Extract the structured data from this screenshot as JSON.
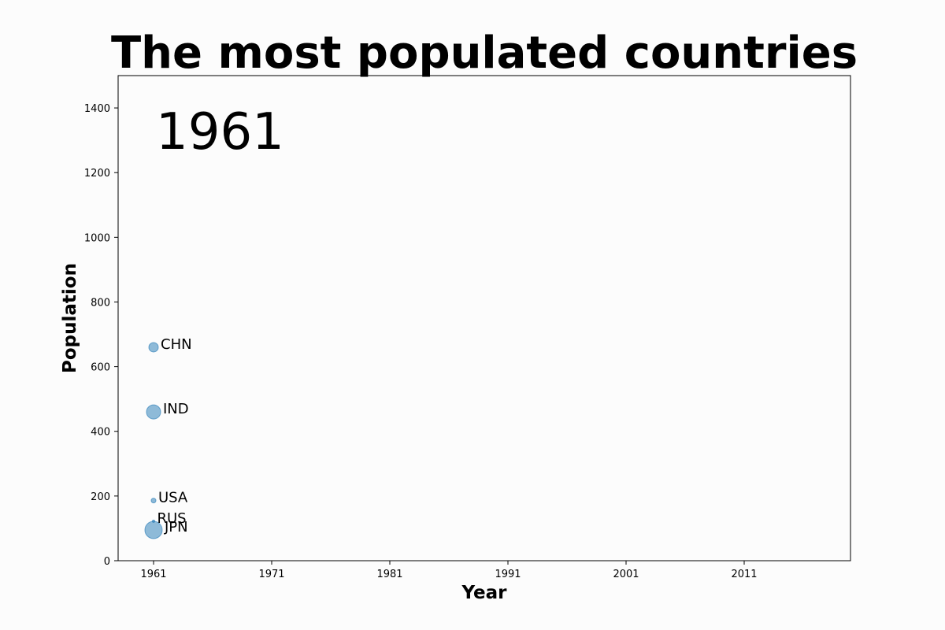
{
  "chart_data": {
    "type": "scatter",
    "title": "The most populated countries",
    "year_label": "1961",
    "xlabel": "Year",
    "ylabel": "Population",
    "xlim": [
      1958,
      2020
    ],
    "ylim": [
      0,
      1500
    ],
    "xticks": [
      1961,
      1971,
      1981,
      1991,
      2001,
      2011
    ],
    "yticks": [
      0,
      200,
      400,
      600,
      800,
      1000,
      1200,
      1400
    ],
    "grid": false,
    "marker_color": "#1f77b4",
    "points": [
      {
        "label": "CHN",
        "x": 1961,
        "y": 660,
        "size": 12
      },
      {
        "label": "IND",
        "x": 1961,
        "y": 460,
        "size": 18
      },
      {
        "label": "USA",
        "x": 1961,
        "y": 186,
        "size": 6
      },
      {
        "label": "RUS",
        "x": 1961,
        "y": 122,
        "size": 3
      },
      {
        "label": "JPN",
        "x": 1961,
        "y": 95,
        "size": 22
      }
    ]
  }
}
